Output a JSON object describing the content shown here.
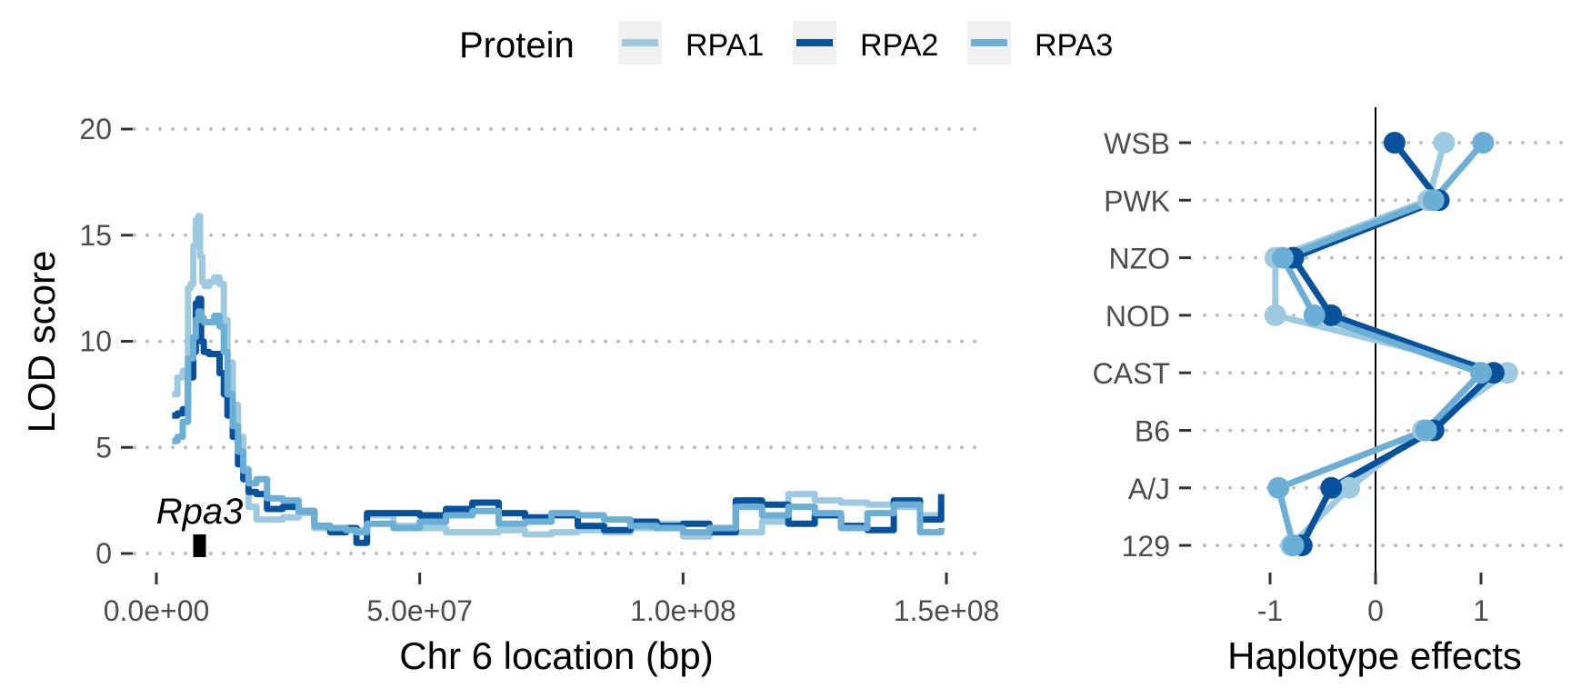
{
  "legend": {
    "title": "Protein",
    "entries": [
      {
        "label": "RPA1",
        "color": "#9ECAE1"
      },
      {
        "label": "RPA2",
        "color": "#08519C"
      },
      {
        "label": "RPA3",
        "color": "#6BAED6"
      }
    ]
  },
  "chart_data": [
    {
      "type": "line",
      "xlabel": "Chr 6 location (bp)",
      "ylabel": "LOD score",
      "xlim": [
        0,
        150000000
      ],
      "ylim": [
        0,
        20
      ],
      "x_ticks": [
        0,
        50000000,
        100000000,
        150000000
      ],
      "x_tick_labels": [
        "0.0e+00",
        "5.0e+07",
        "1.0e+08",
        "1.5e+08"
      ],
      "y_ticks": [
        0,
        5,
        10,
        15,
        20
      ],
      "y_tick_labels": [
        "0",
        "5",
        "10",
        "15",
        "20"
      ],
      "grid": "horizontal dotted",
      "annotation": {
        "label": "Rpa3",
        "position_bp": 8200000
      },
      "series": [
        {
          "name": "RPA1",
          "color": "#9ECAE1",
          "x": [
            3000000,
            4000000,
            5000000,
            6000000,
            6500000,
            7000000,
            7500000,
            8000000,
            8300000,
            8700000,
            9200000,
            10000000,
            11000000,
            12000000,
            12800000,
            13500000,
            14500000,
            15500000,
            16500000,
            17500000,
            19000000,
            21000000,
            24000000,
            27000000,
            30000000,
            35000000,
            40000000,
            45000000,
            50000000,
            55000000,
            60000000,
            65000000,
            70000000,
            75000000,
            80000000,
            85000000,
            90000000,
            95000000,
            100000000,
            105000000,
            110000000,
            115000000,
            120000000,
            125000000,
            130000000,
            135000000,
            140000000,
            145000000,
            149000000
          ],
          "y": [
            7.5,
            8.3,
            8.6,
            12.5,
            12.7,
            14.5,
            15.7,
            15.9,
            14,
            12.8,
            12.6,
            12.8,
            13,
            12.7,
            11,
            9,
            7,
            5.5,
            4,
            2.2,
            1.6,
            1.6,
            1.7,
            1.9,
            1.2,
            1.1,
            1.8,
            1.3,
            1.2,
            1.0,
            1.0,
            1.1,
            0.9,
            1.0,
            1.1,
            1.0,
            1.2,
            1.4,
            0.8,
            1.0,
            1.0,
            1.5,
            2.8,
            2.5,
            2.4,
            2.3,
            2.2,
            1.8,
            1.5
          ]
        },
        {
          "name": "RPA2",
          "color": "#08519C",
          "x": [
            3000000,
            4000000,
            5000000,
            6000000,
            7000000,
            7500000,
            8000000,
            8500000,
            9000000,
            10000000,
            11000000,
            12000000,
            12800000,
            13500000,
            14500000,
            15500000,
            16500000,
            17500000,
            19000000,
            21000000,
            24000000,
            27000000,
            30000000,
            33000000,
            36000000,
            38000000,
            40000000,
            45000000,
            50000000,
            55000000,
            60000000,
            65000000,
            70000000,
            75000000,
            80000000,
            85000000,
            90000000,
            95000000,
            100000000,
            105000000,
            110000000,
            115000000,
            120000000,
            125000000,
            130000000,
            135000000,
            140000000,
            145000000,
            149000000
          ],
          "y": [
            6.5,
            6.6,
            6.8,
            8.3,
            9.5,
            11.8,
            12,
            10,
            9.5,
            9.4,
            9.4,
            8.5,
            7.5,
            6.5,
            5.5,
            4.2,
            3.5,
            2.9,
            2.8,
            2.1,
            2.2,
            2.0,
            1.3,
            1.0,
            1.2,
            0.5,
            1.9,
            1.9,
            1.8,
            2.1,
            2.4,
            1.9,
            1.7,
            1.8,
            1.3,
            1.1,
            1.5,
            1.3,
            1.4,
            1.0,
            2.5,
            2.3,
            1.4,
            1.8,
            1.3,
            1.1,
            2.5,
            1.6,
            2.8
          ]
        },
        {
          "name": "RPA3",
          "color": "#6BAED6",
          "x": [
            3000000,
            4000000,
            5000000,
            6000000,
            7000000,
            7500000,
            8000000,
            8500000,
            9000000,
            10000000,
            11000000,
            12000000,
            12800000,
            13500000,
            14500000,
            15500000,
            16500000,
            17500000,
            19000000,
            21000000,
            24000000,
            27000000,
            30000000,
            33000000,
            36000000,
            38000000,
            40000000,
            45000000,
            50000000,
            55000000,
            60000000,
            65000000,
            70000000,
            75000000,
            80000000,
            85000000,
            90000000,
            95000000,
            100000000,
            105000000,
            110000000,
            115000000,
            120000000,
            125000000,
            130000000,
            135000000,
            140000000,
            145000000,
            149000000
          ],
          "y": [
            5.3,
            5.5,
            6.2,
            9.2,
            10.2,
            11,
            11.4,
            11.1,
            10.9,
            10.9,
            11.2,
            10.7,
            9.5,
            7.5,
            6.0,
            4.8,
            3.9,
            3.3,
            3.5,
            2.6,
            2.5,
            2.0,
            1.3,
            1.2,
            1.1,
            1.0,
            1.4,
            1.2,
            1.5,
            1.8,
            2.0,
            1.4,
            1.5,
            1.9,
            1.8,
            1.6,
            1.3,
            1.2,
            1.0,
            1.2,
            2.2,
            1.8,
            2.2,
            1.9,
            1.2,
            1.9,
            2.3,
            1.0,
            1.2
          ]
        }
      ]
    },
    {
      "type": "line",
      "xlabel": "Haplotype effects",
      "ylabel": "",
      "xlim": [
        -1.4,
        1.6
      ],
      "x_ticks": [
        -1,
        0,
        1
      ],
      "x_tick_labels": [
        "-1",
        "0",
        "1"
      ],
      "reference_line_x": 0,
      "grid": "horizontal dotted",
      "categories": [
        "WSB",
        "PWK",
        "NZO",
        "NOD",
        "CAST",
        "B6",
        "A/J",
        "129"
      ],
      "series": [
        {
          "name": "RPA1",
          "color": "#9ECAE1",
          "values": [
            0.65,
            0.5,
            -0.95,
            -0.95,
            1.25,
            0.45,
            -0.25,
            -0.8
          ]
        },
        {
          "name": "RPA2",
          "color": "#08519C",
          "values": [
            0.18,
            0.6,
            -0.78,
            -0.42,
            1.12,
            0.55,
            -0.42,
            -0.7
          ]
        },
        {
          "name": "RPA3",
          "color": "#6BAED6",
          "values": [
            1.02,
            0.55,
            -0.88,
            -0.58,
            1.0,
            0.48,
            -0.92,
            -0.78
          ]
        }
      ]
    }
  ]
}
